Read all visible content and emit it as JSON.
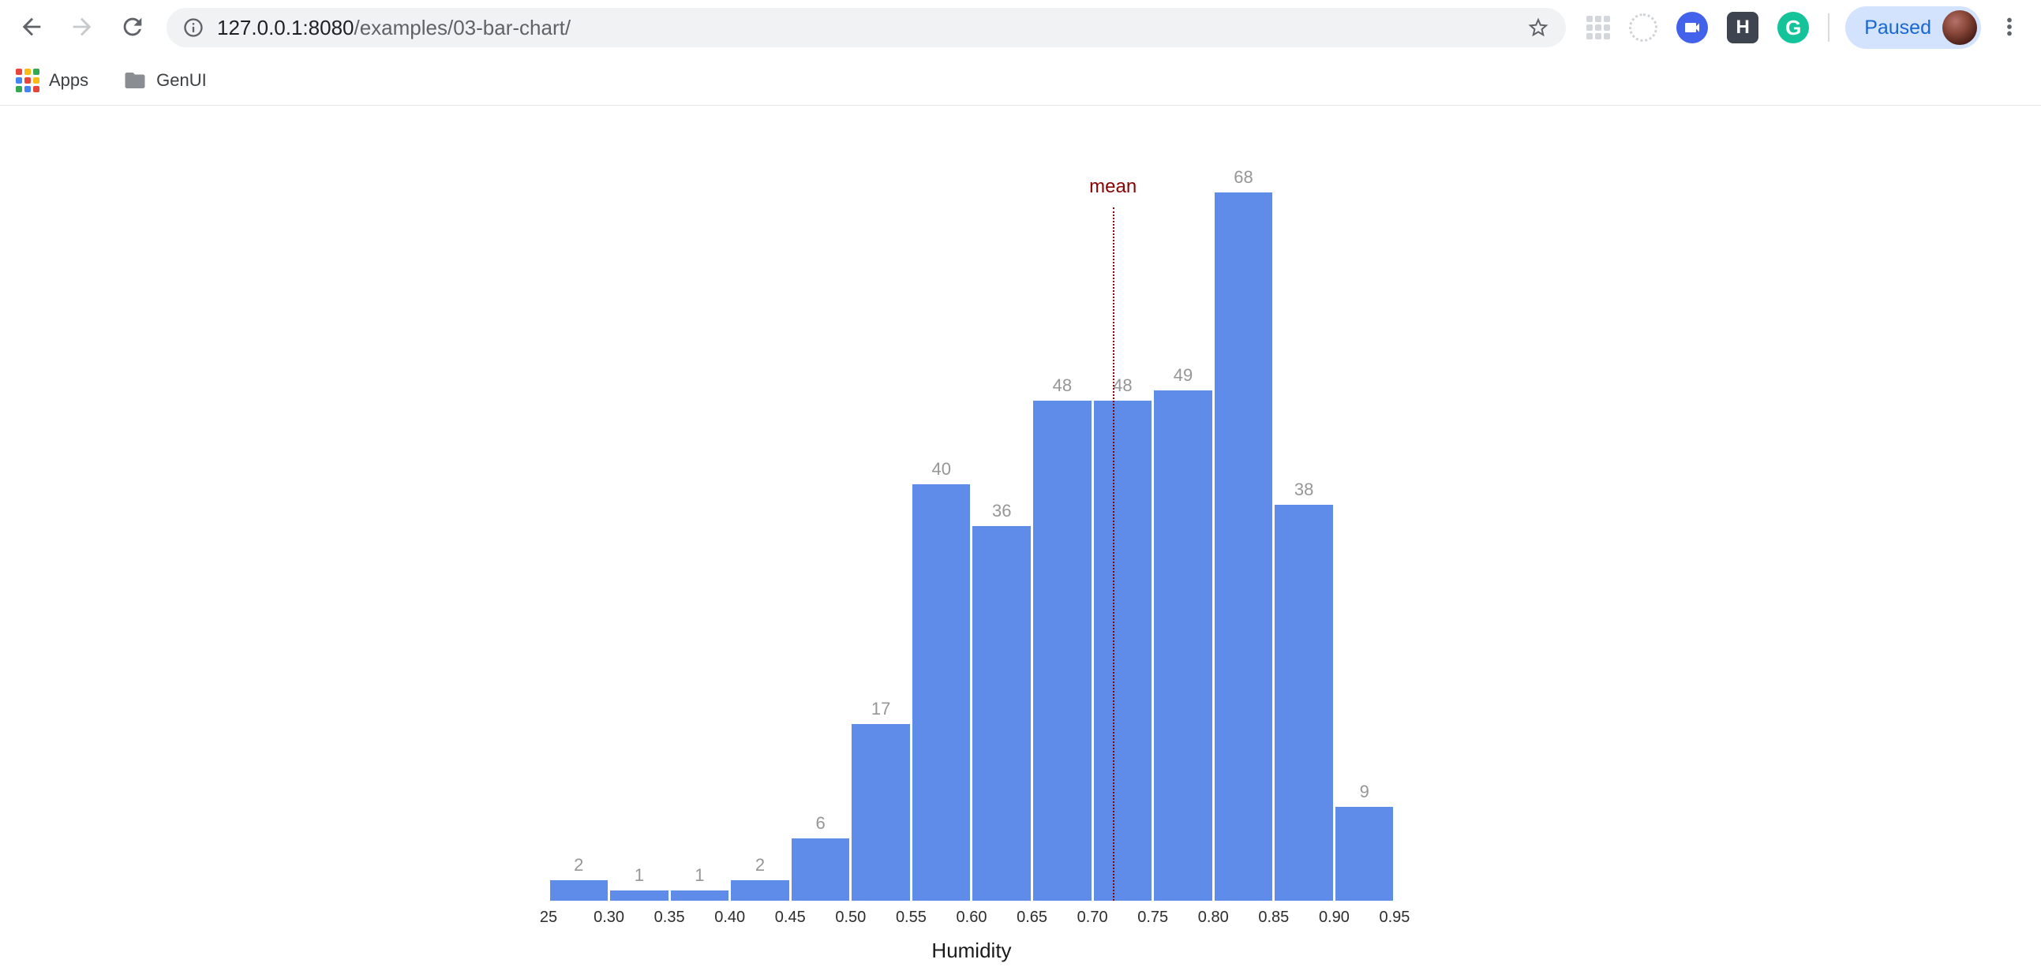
{
  "browser": {
    "toolbar": {
      "url_host": "127.0.0.1:8080",
      "url_path": "/examples/03-bar-chart/",
      "profile_chip_label": "Paused"
    },
    "bookmarks_bar": {
      "items": [
        {
          "label": "Apps"
        },
        {
          "label": "GenUI"
        }
      ]
    },
    "extensions": {
      "h_badge": "H",
      "grammarly_badge": "G"
    },
    "icons": {
      "back": "arrow-left",
      "forward": "arrow-right",
      "reload": "refresh",
      "site_info": "info-circle",
      "bookmark": "star-outline",
      "menu": "three-dots-vertical",
      "apps": "colored-grid",
      "bookmark_folder": "folder"
    },
    "colors": {
      "accent_blue": "#1967d2",
      "paused_chip_bg": "#d3e3fd",
      "omnibox_bg": "#f0f2f4"
    }
  },
  "chart_data": {
    "type": "bar",
    "title": "",
    "xlabel": "Humidity",
    "ylabel": "",
    "bin_start": 0.25,
    "bin_size": 0.05,
    "tick_labels": [
      "25",
      "0.30",
      "0.35",
      "0.40",
      "0.45",
      "0.50",
      "0.55",
      "0.60",
      "0.65",
      "0.70",
      "0.75",
      "0.80",
      "0.85",
      "0.90",
      "0.95"
    ],
    "values": [
      2,
      1,
      1,
      2,
      6,
      17,
      40,
      36,
      48,
      48,
      49,
      68,
      38,
      9
    ],
    "mean": {
      "label": "mean",
      "value": 0.717
    },
    "ylim": [
      0,
      68
    ],
    "grid": false,
    "legend": false,
    "bar_color": "#5f8ce8",
    "value_label_color": "#969696",
    "mean_color": "#8b0000"
  }
}
